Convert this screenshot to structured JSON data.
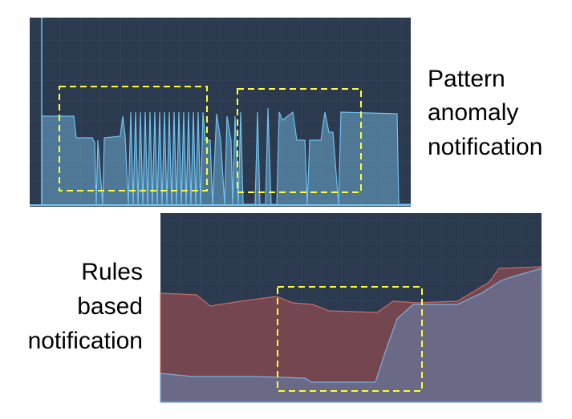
{
  "labels": [
    {
      "lines": [
        "Pattern",
        "anomaly",
        "notification"
      ]
    },
    {
      "lines": [
        "Rules",
        "based",
        "notification"
      ]
    }
  ]
}
